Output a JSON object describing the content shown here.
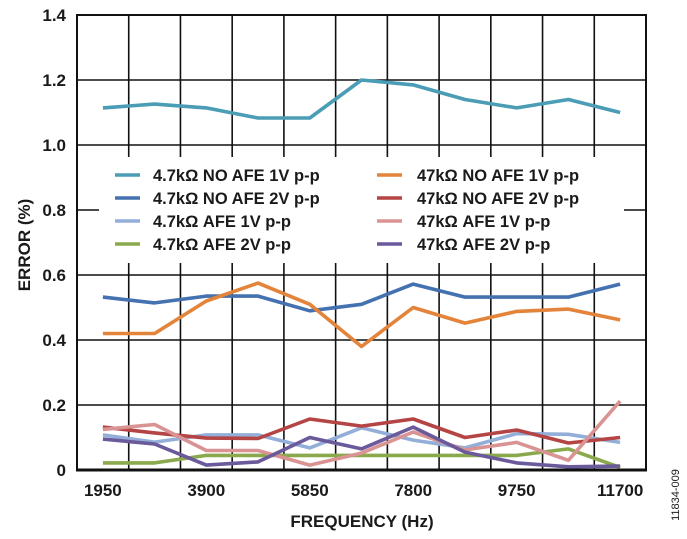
{
  "chart_data": {
    "type": "line",
    "title": "",
    "xlabel": "FREQUENCY (Hz)",
    "ylabel": "ERROR (%)",
    "x": [
      1950,
      2925,
      3900,
      4875,
      5850,
      6825,
      7800,
      8775,
      9750,
      10725,
      11700
    ],
    "x_tick_labels": [
      "1950",
      "",
      "3900",
      "",
      "5850",
      "",
      "7800",
      "",
      "9750",
      "",
      "11700"
    ],
    "ylim": [
      0,
      1.4
    ],
    "y_ticks": [
      0,
      0.2,
      0.4,
      0.6,
      0.8,
      1.0,
      1.2,
      1.4
    ],
    "y_tick_labels": [
      "0",
      "0.2",
      "0.4",
      "0.6",
      "0.8",
      "1.0",
      "1.2",
      "1.4"
    ],
    "grid": true,
    "legend_position": "center",
    "figure_id": "11834-009",
    "series": [
      {
        "name": "4.7kΩ NO AFE 1V p-p",
        "color": "#4A9DB5",
        "values": [
          1.114,
          1.126,
          1.114,
          1.083,
          1.083,
          1.2,
          1.185,
          1.14,
          1.114,
          1.14,
          1.1
        ]
      },
      {
        "name": "4.7kΩ NO AFE 2V p-p",
        "color": "#4472B0",
        "values": [
          0.532,
          0.514,
          0.535,
          0.535,
          0.49,
          0.51,
          0.572,
          0.532,
          0.532,
          0.532,
          0.572
        ]
      },
      {
        "name": "4.7kΩ AFE 1V p-p",
        "color": "#93AED8",
        "values": [
          0.108,
          0.086,
          0.108,
          0.108,
          0.068,
          0.13,
          0.092,
          0.068,
          0.112,
          0.11,
          0.085
        ]
      },
      {
        "name": "4.7kΩ AFE 2V p-p",
        "color": "#89A94C",
        "values": [
          0.022,
          0.022,
          0.045,
          0.045,
          0.045,
          0.045,
          0.045,
          0.045,
          0.045,
          0.065,
          0.008
        ]
      },
      {
        "name": "47kΩ NO AFE 1V p-p",
        "color": "#E3843A",
        "values": [
          0.42,
          0.42,
          0.52,
          0.575,
          0.51,
          0.38,
          0.5,
          0.452,
          0.488,
          0.495,
          0.462
        ]
      },
      {
        "name": "47kΩ NO AFE 2V p-p",
        "color": "#B54444",
        "values": [
          0.132,
          0.114,
          0.098,
          0.097,
          0.157,
          0.135,
          0.157,
          0.1,
          0.123,
          0.083,
          0.1
        ]
      },
      {
        "name": "47kΩ AFE 1V p-p",
        "color": "#D99393",
        "values": [
          0.125,
          0.14,
          0.06,
          0.06,
          0.015,
          0.052,
          0.117,
          0.062,
          0.085,
          0.03,
          0.212
        ]
      },
      {
        "name": "47kΩ AFE 2V p-p",
        "color": "#6B5A9B",
        "values": [
          0.095,
          0.08,
          0.015,
          0.025,
          0.1,
          0.065,
          0.132,
          0.055,
          0.022,
          0.01,
          0.012
        ]
      }
    ]
  }
}
